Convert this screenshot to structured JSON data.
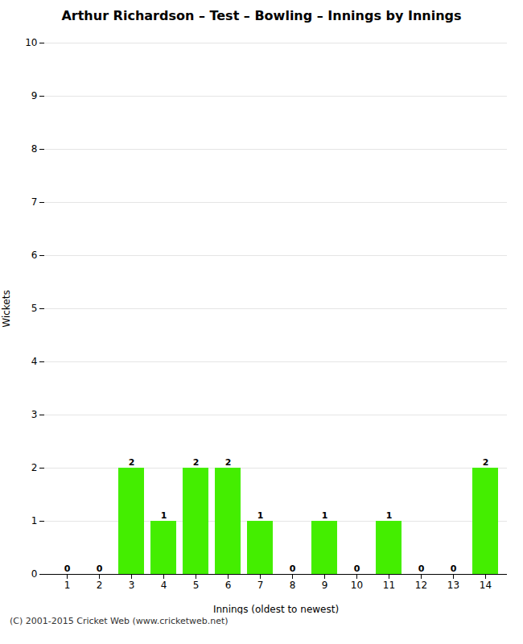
{
  "chart_data": {
    "type": "bar",
    "title": "Arthur Richardson – Test – Bowling – Innings by Innings",
    "x_label": "Innings (oldest to newest)",
    "y_label": "Wickets",
    "categories": [
      1,
      2,
      3,
      4,
      5,
      6,
      7,
      8,
      9,
      10,
      11,
      12,
      13,
      14
    ],
    "values": [
      0,
      0,
      2,
      1,
      2,
      2,
      1,
      0,
      1,
      0,
      1,
      0,
      0,
      2
    ],
    "color": "#44ee00",
    "ylim": [
      0,
      10
    ],
    "yticks": [
      0,
      1,
      2,
      3,
      4,
      5,
      6,
      7,
      8,
      9,
      10
    ],
    "grid": true,
    "data_labels": true,
    "annotations": [
      "(C) 2001-2015 Cricket Web (www.cricketweb.net)"
    ]
  }
}
